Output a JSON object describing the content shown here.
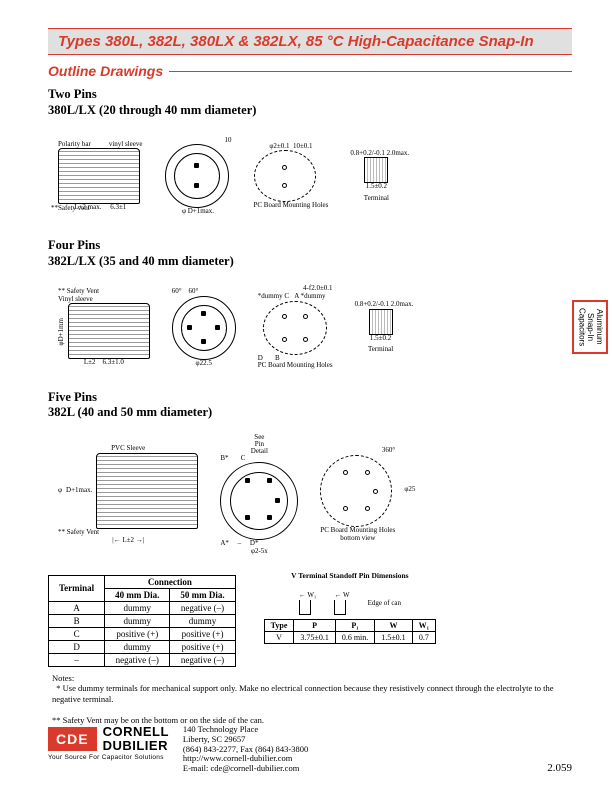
{
  "title_bar": "Types 380L, 382L, 380LX & 382LX, 85 °C High-Capacitance Snap-In",
  "section_head": "Outline Drawings",
  "side_tab": "Aluminum\nSnap-In\nCapacitors",
  "groups": {
    "two": {
      "heading": "Two Pins",
      "sub": "380L/LX (20 through 40 mm diameter)"
    },
    "four": {
      "heading": "Four Pins",
      "sub": "382L/LX (35 and 40 mm diameter)"
    },
    "five": {
      "heading": "Five Pins",
      "sub": "382L (40 and 50 mm diameter)"
    }
  },
  "labels": {
    "polarity_bar": "Polarity bar",
    "vinyl_sleeve": "vinyl sleeve",
    "vinyl_sleeve_cap": "Vinyl sleeve",
    "pvc_sleeve": "PVC Sleeve",
    "safety_vent": "**Safety vent",
    "safety_vent2": "** Safety Vent",
    "l_plus_2": "L+2 max.",
    "l_pm_2": "L±2",
    "six_three": "6.3±1",
    "six_three_one": "6.3±1.0",
    "phi_d1": "φ D+1max.",
    "d_plus_1": "D+1max.",
    "phi_2": "φ2±0.1",
    "ten_pm": "10±0.1",
    "phi_d_1mm": "φD+1mm",
    "pc_board": "PC Board Mounting Holes",
    "pc_board_bottom": "PC Board Mounting Holes\nbottom view",
    "terminal": "Terminal",
    "two_max": "2.0max.",
    "pt8": "0.8+0.2/-0.1",
    "one_five": "1.5±0.2",
    "sixty": "60°",
    "four_f2": "4-f2.0±0.1",
    "dummy": "*dummy",
    "phi22_5": "φ22.5",
    "see_pin": "See\nPin\nDetail",
    "three_sixty": "360°",
    "phi25": "φ25",
    "phi_2_5x": "φ2-5x",
    "a": "A*",
    "b": "B*",
    "c": "C",
    "d": "D*",
    "ten": "10"
  },
  "conn_table": {
    "header_terminal": "Terminal",
    "header_connection": "Connection",
    "cols": [
      "40 mm Dia.",
      "50 mm Dia."
    ],
    "rows": [
      [
        "A",
        "dummy",
        "negative (–)"
      ],
      [
        "B",
        "dummy",
        "dummy"
      ],
      [
        "C",
        "positive (+)",
        "positive (+)"
      ],
      [
        "D",
        "dummy",
        "positive (+)"
      ],
      [
        "–",
        "negative (–)",
        "negative (–)"
      ]
    ]
  },
  "standoff": {
    "title": "V Terminal Standoff Pin Dimensions",
    "labels": {
      "w1": "W₁",
      "w": "W",
      "edge": "Edge of can"
    },
    "header": [
      "Type",
      "P",
      "P₁",
      "W",
      "W₁"
    ],
    "row": [
      "V",
      "3.75±0.1",
      "0.6 min.",
      "1.5±0.1",
      "0.7"
    ]
  },
  "notes": {
    "heading": "Notes:",
    "note1": "* Use dummy terminals for mechanical support only. Make no electrical connection because they resistively connect through the electrolyte to the negative terminal.",
    "note2": "** Safety Vent may be on the bottom or on the side of the can."
  },
  "footer": {
    "logo": "CDE",
    "name1": "CORNELL",
    "name2": "DUBILIER",
    "tagline": "Your Source For Capacitor Solutions",
    "addr1": "140 Technology Place",
    "addr2": "Liberty, SC 29657",
    "addr3": "(864) 843-2277, Fax (864) 843-3800",
    "addr4": "http://www.cornell-dubilier.com",
    "addr5": "E-mail: cde@cornell-dubilier.com",
    "page": "2.059"
  }
}
